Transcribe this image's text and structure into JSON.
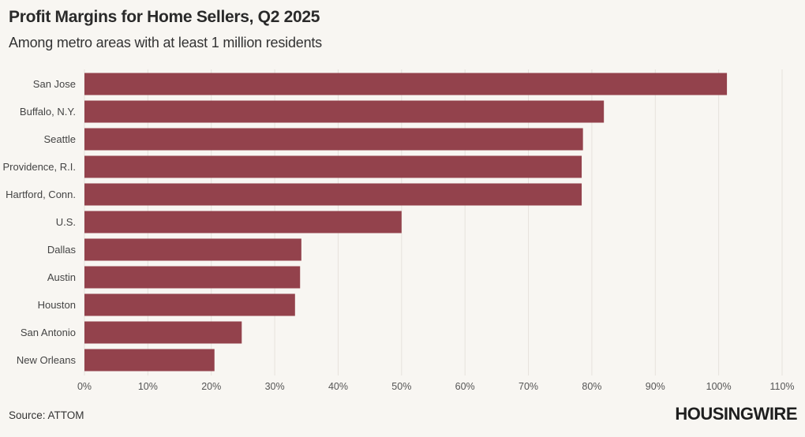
{
  "header": {
    "title": "Profit Margins for Home Sellers, Q2 2025",
    "subtitle": "Among metro areas with at least 1 million residents"
  },
  "footer": {
    "source": "Source: ATTOM",
    "brand": "HOUSINGWIRE"
  },
  "colors": {
    "bar": "#93424c",
    "grid": "#e6e2dc",
    "background": "#f8f6f2"
  },
  "chart_data": {
    "type": "bar",
    "orientation": "horizontal",
    "title": "Profit Margins for Home Sellers, Q2 2025",
    "subtitle": "Among metro areas with at least 1 million residents",
    "categories": [
      "San Jose",
      "Buffalo, N.Y.",
      "Seattle",
      "Providence, R.I.",
      "Hartford, Conn.",
      "U.S.",
      "Dallas",
      "Austin",
      "Houston",
      "San Antonio",
      "New Orleans"
    ],
    "values": [
      101.3,
      81.9,
      78.6,
      78.4,
      78.4,
      50.0,
      34.2,
      34.0,
      33.2,
      24.8,
      20.5
    ],
    "xlim": [
      0,
      110
    ],
    "xticks": [
      0,
      10,
      20,
      30,
      40,
      50,
      60,
      70,
      80,
      90,
      100,
      110
    ],
    "xtick_labels": [
      "0%",
      "10%",
      "20%",
      "30%",
      "40%",
      "50%",
      "60%",
      "70%",
      "80%",
      "90%",
      "100%",
      "110%"
    ],
    "xlabel": "",
    "ylabel": "",
    "grid": true
  }
}
